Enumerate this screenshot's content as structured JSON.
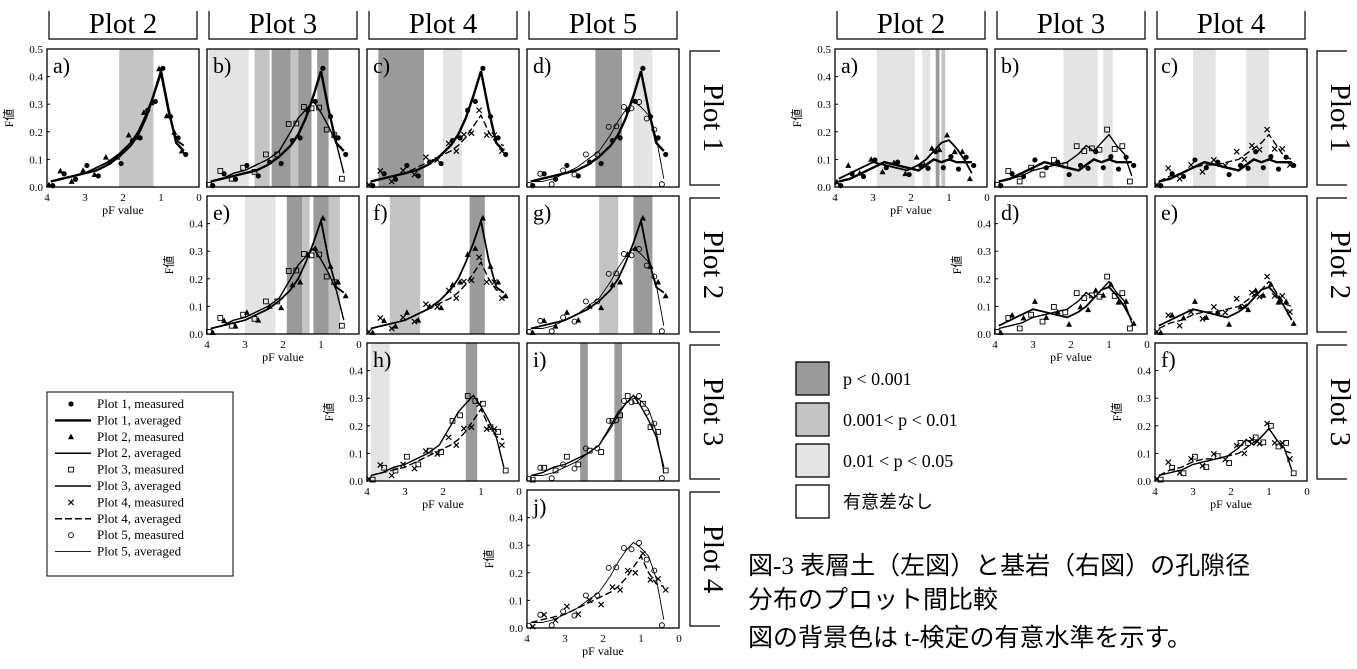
{
  "caption": {
    "line1": "図-3 表層土（左図）と基岩（右図）の孔隙径",
    "line2": "分布のプロット間比較",
    "line3": "図の背景色は t-検定の有意水準を示す。"
  },
  "chart_data": [
    {
      "type": "line",
      "name": "表層土 (left figure)",
      "column_headers": [
        "Plot 2",
        "Plot 3",
        "Plot 4",
        "Plot 5"
      ],
      "row_headers": [
        "Plot 1",
        "Plot 2",
        "Plot 3",
        "Plot 4"
      ],
      "xlabel": "pF value",
      "ylabel": "F値",
      "xlim": [
        4,
        0
      ],
      "ylim": [
        0,
        0.5
      ],
      "xticks": [
        "4",
        "3",
        "2",
        "1",
        "0"
      ],
      "yticks": [
        "0.0",
        "0.1",
        "0.2",
        "0.3",
        "0.4",
        "0.5"
      ],
      "legend": {
        "placement": "bottom-left",
        "entries": [
          {
            "marker": "dot",
            "label": "Plot 1, measured"
          },
          {
            "line": "solid-thick",
            "label": "Plot 1, averaged"
          },
          {
            "marker": "triangle",
            "label": "Plot 2, measured"
          },
          {
            "line": "solid",
            "label": "Plot 2, averaged"
          },
          {
            "marker": "square",
            "label": "Plot 3, measured"
          },
          {
            "line": "solid",
            "label": "Plot 3, averaged"
          },
          {
            "marker": "cross",
            "label": "Plot 4, measured"
          },
          {
            "line": "dashed",
            "label": "Plot 4, averaged"
          },
          {
            "marker": "circle",
            "label": "Plot 5, measured"
          },
          {
            "line": "solid-thin",
            "label": "Plot 5, averaged"
          }
        ]
      },
      "curves": {
        "pF": [
          3.9,
          3.6,
          3.3,
          3.0,
          2.7,
          2.4,
          2.1,
          1.8,
          1.6,
          1.4,
          1.2,
          1.0,
          0.8,
          0.6,
          0.4
        ],
        "Plot 1": [
          0.02,
          0.03,
          0.04,
          0.05,
          0.06,
          0.08,
          0.11,
          0.15,
          0.19,
          0.25,
          0.33,
          0.42,
          0.28,
          0.16,
          0.13
        ],
        "Plot 2": [
          0.02,
          0.03,
          0.04,
          0.05,
          0.07,
          0.09,
          0.12,
          0.16,
          0.2,
          0.26,
          0.33,
          0.41,
          0.27,
          0.17,
          0.15
        ],
        "Plot 3": [
          0.02,
          0.03,
          0.05,
          0.06,
          0.08,
          0.1,
          0.13,
          0.2,
          0.25,
          0.28,
          0.31,
          0.27,
          0.22,
          0.16,
          0.05
        ],
        "Plot 4": [
          0.02,
          0.03,
          0.04,
          0.05,
          0.07,
          0.09,
          0.11,
          0.13,
          0.15,
          0.18,
          0.22,
          0.26,
          0.2,
          0.16,
          0.15
        ],
        "Plot 5": [
          0.02,
          0.02,
          0.03,
          0.05,
          0.07,
          0.1,
          0.13,
          0.19,
          0.24,
          0.28,
          0.31,
          0.29,
          0.26,
          0.18,
          0.03
        ]
      },
      "panels": [
        {
          "label": "a)",
          "row": 0,
          "col": 0,
          "series": [
            "Plot 1",
            "Plot 2"
          ],
          "bands": [
            [
              2.1,
              1.2,
              "mid"
            ]
          ]
        },
        {
          "label": "b)",
          "row": 0,
          "col": 1,
          "series": [
            "Plot 1",
            "Plot 3"
          ],
          "bands": [
            [
              3.95,
              2.9,
              "light"
            ],
            [
              2.75,
              2.35,
              "mid"
            ],
            [
              2.3,
              1.8,
              "dark"
            ],
            [
              1.8,
              1.6,
              "mid"
            ],
            [
              1.6,
              1.25,
              "dark"
            ],
            [
              1.1,
              0.8,
              "dark"
            ]
          ]
        },
        {
          "label": "c)",
          "row": 0,
          "col": 2,
          "series": [
            "Plot 1",
            "Plot 4"
          ],
          "bands": [
            [
              3.7,
              2.5,
              "dark"
            ],
            [
              2.0,
              1.5,
              "light"
            ]
          ]
        },
        {
          "label": "d)",
          "row": 0,
          "col": 3,
          "series": [
            "Plot 1",
            "Plot 5"
          ],
          "bands": [
            [
              2.2,
              1.5,
              "dark"
            ],
            [
              1.2,
              0.7,
              "light"
            ]
          ]
        },
        {
          "label": "e)",
          "row": 1,
          "col": 1,
          "series": [
            "Plot 2",
            "Plot 3"
          ],
          "bands": [
            [
              3.0,
              2.2,
              "light"
            ],
            [
              1.9,
              1.5,
              "dark"
            ],
            [
              1.5,
              1.3,
              "mid"
            ],
            [
              1.2,
              0.8,
              "dark"
            ],
            [
              0.8,
              0.5,
              "mid"
            ]
          ]
        },
        {
          "label": "f)",
          "row": 1,
          "col": 2,
          "series": [
            "Plot 2",
            "Plot 4"
          ],
          "bands": [
            [
              3.4,
              2.6,
              "mid"
            ],
            [
              1.3,
              0.9,
              "dark"
            ]
          ]
        },
        {
          "label": "g)",
          "row": 1,
          "col": 3,
          "series": [
            "Plot 2",
            "Plot 5"
          ],
          "bands": [
            [
              2.1,
              1.6,
              "mid"
            ],
            [
              1.2,
              0.7,
              "dark"
            ]
          ]
        },
        {
          "label": "h)",
          "row": 2,
          "col": 2,
          "series": [
            "Plot 3",
            "Plot 4"
          ],
          "bands": [
            [
              3.9,
              3.4,
              "light"
            ],
            [
              1.4,
              1.1,
              "dark"
            ]
          ]
        },
        {
          "label": "i)",
          "row": 2,
          "col": 3,
          "series": [
            "Plot 3",
            "Plot 5"
          ],
          "bands": [
            [
              2.6,
              2.4,
              "dark"
            ],
            [
              1.7,
              1.5,
              "dark"
            ]
          ]
        },
        {
          "label": "j)",
          "row": 3,
          "col": 3,
          "series": [
            "Plot 4",
            "Plot 5"
          ],
          "bands": []
        }
      ]
    },
    {
      "type": "line",
      "name": "基岩 (right figure)",
      "column_headers": [
        "Plot 2",
        "Plot 3",
        "Plot 4"
      ],
      "row_headers": [
        "Plot 1",
        "Plot 2",
        "Plot 3"
      ],
      "xlabel": "pF value",
      "ylabel": "F値",
      "xlim": [
        4,
        0
      ],
      "ylim": [
        0,
        0.5
      ],
      "xticks": [
        "4",
        "3",
        "2",
        "1",
        "0"
      ],
      "yticks": [
        "0.0",
        "0.1",
        "0.2",
        "0.3",
        "0.4",
        "0.5"
      ],
      "curves": {
        "pF": [
          3.9,
          3.6,
          3.3,
          3.0,
          2.7,
          2.4,
          2.1,
          1.8,
          1.6,
          1.4,
          1.2,
          1.0,
          0.8,
          0.6,
          0.4
        ],
        "Plot 1": [
          0.02,
          0.03,
          0.05,
          0.07,
          0.09,
          0.08,
          0.07,
          0.06,
          0.08,
          0.1,
          0.09,
          0.1,
          0.09,
          0.09,
          0.09
        ],
        "Plot 2": [
          0.03,
          0.05,
          0.07,
          0.09,
          0.08,
          0.07,
          0.06,
          0.08,
          0.1,
          0.13,
          0.16,
          0.17,
          0.14,
          0.1,
          0.05
        ],
        "Plot 3": [
          0.02,
          0.03,
          0.04,
          0.06,
          0.07,
          0.08,
          0.09,
          0.12,
          0.15,
          0.13,
          0.16,
          0.19,
          0.15,
          0.12,
          0.04
        ],
        "Plot 4": [
          0.02,
          0.04,
          0.05,
          0.07,
          0.08,
          0.08,
          0.09,
          0.1,
          0.12,
          0.14,
          0.16,
          0.19,
          0.15,
          0.11,
          0.1
        ]
      },
      "panels": [
        {
          "label": "a)",
          "row": 0,
          "col": 0,
          "series": [
            "Plot 1",
            "Plot 2"
          ],
          "bands": [
            [
              2.9,
              1.9,
              "light"
            ],
            [
              1.7,
              1.5,
              "light"
            ],
            [
              1.35,
              1.25,
              "dark"
            ],
            [
              1.2,
              1.1,
              "mid"
            ]
          ]
        },
        {
          "label": "b)",
          "row": 0,
          "col": 1,
          "series": [
            "Plot 1",
            "Plot 3"
          ],
          "bands": [
            [
              2.2,
              1.5,
              "light"
            ],
            [
              1.5,
              1.3,
              "light"
            ],
            [
              1.15,
              0.9,
              "light"
            ]
          ]
        },
        {
          "label": "c)",
          "row": 0,
          "col": 2,
          "series": [
            "Plot 1",
            "Plot 4"
          ],
          "bands": [
            [
              3.0,
              2.4,
              "light"
            ],
            [
              1.6,
              1.0,
              "light"
            ]
          ]
        },
        {
          "label": "d)",
          "row": 1,
          "col": 1,
          "series": [
            "Plot 2",
            "Plot 3"
          ],
          "bands": []
        },
        {
          "label": "e)",
          "row": 1,
          "col": 2,
          "series": [
            "Plot 2",
            "Plot 4"
          ],
          "bands": []
        },
        {
          "label": "f)",
          "row": 2,
          "col": 2,
          "series": [
            "Plot 3",
            "Plot 4"
          ],
          "bands": []
        }
      ],
      "significance_legend": [
        {
          "shade": "dark",
          "label": "p < 0.001"
        },
        {
          "shade": "mid",
          "label": "0.001< p < 0.01"
        },
        {
          "shade": "light",
          "label": "0.01 < p < 0.05"
        },
        {
          "shade": "none",
          "label": "有意差なし"
        }
      ]
    }
  ]
}
